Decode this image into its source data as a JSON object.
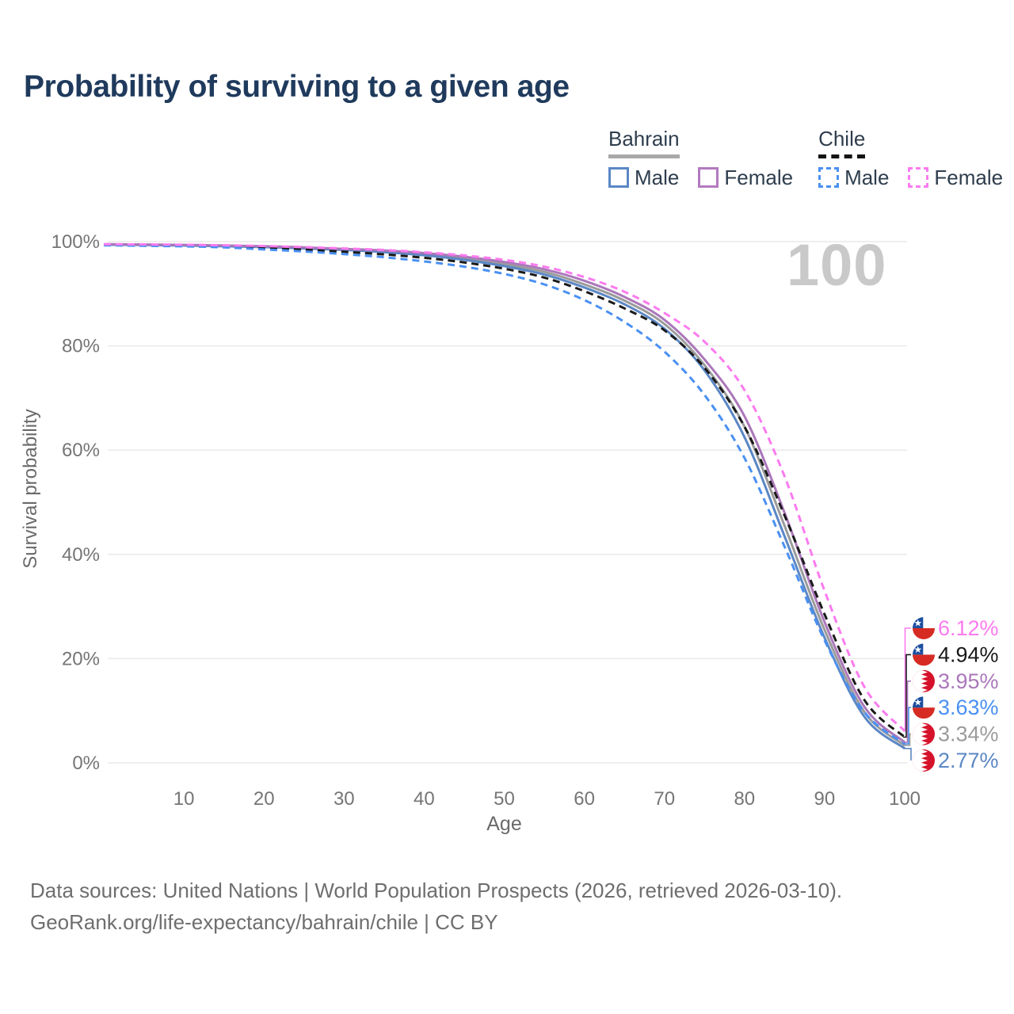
{
  "title": "Probability of surviving to a given age",
  "watermark": "100",
  "legend": {
    "groups": [
      {
        "name": "Bahrain",
        "style": "solid",
        "underline_color": "#a9a9a9",
        "items": [
          {
            "label": "Male",
            "color": "#5b87c5"
          },
          {
            "label": "Female",
            "color": "#b27abf"
          }
        ]
      },
      {
        "name": "Chile",
        "style": "dashed",
        "underline_color": "#141414",
        "items": [
          {
            "label": "Male",
            "color": "#4a90f2"
          },
          {
            "label": "Female",
            "color": "#fb7bef"
          }
        ]
      }
    ]
  },
  "chart_data": {
    "type": "line",
    "title": "Probability of surviving to a given age",
    "xlabel": "Age",
    "ylabel": "Survival probability",
    "xlim": [
      0,
      100
    ],
    "ylim": [
      0,
      100
    ],
    "grid": true,
    "x_ticks": [
      10,
      20,
      30,
      40,
      50,
      60,
      70,
      80,
      90,
      100
    ],
    "y_ticks": [
      0,
      20,
      40,
      60,
      80,
      100
    ],
    "y_tick_labels": [
      "0%",
      "20%",
      "40%",
      "60%",
      "80%",
      "100%"
    ],
    "ages": [
      0,
      5,
      10,
      15,
      20,
      25,
      30,
      35,
      40,
      45,
      50,
      55,
      60,
      65,
      70,
      75,
      80,
      85,
      90,
      95,
      100
    ],
    "series": [
      {
        "id": "bahrain-total",
        "name": "Bahrain — Both sexes",
        "country": "Bahrain",
        "sex": "Both",
        "color": "#9b9b9b",
        "dash": false,
        "flag": "bahrain",
        "end_label": "3.34%",
        "values": [
          99.45,
          99.4,
          99.3,
          99.17,
          99.0,
          98.8,
          98.5,
          98.15,
          97.6,
          96.8,
          95.7,
          94.2,
          91.8,
          88.7,
          84.2,
          76.3,
          64.5,
          45.5,
          25.5,
          9.7,
          3.34
        ]
      },
      {
        "id": "bahrain-male",
        "name": "Bahrain — Male",
        "country": "Bahrain",
        "sex": "Male",
        "color": "#5b87c5",
        "dash": false,
        "flag": "bahrain",
        "end_label": "2.77%",
        "values": [
          99.4,
          99.35,
          99.25,
          99.1,
          98.95,
          98.7,
          98.4,
          98.0,
          97.4,
          96.5,
          95.3,
          93.7,
          91.2,
          88.0,
          83.3,
          75.3,
          62.5,
          43.5,
          24.0,
          8.8,
          2.77
        ]
      },
      {
        "id": "bahrain-female",
        "name": "Bahrain — Female",
        "country": "Bahrain",
        "sex": "Female",
        "color": "#ab77ba",
        "dash": false,
        "flag": "bahrain",
        "end_label": "3.95%",
        "values": [
          99.5,
          99.45,
          99.38,
          99.25,
          99.1,
          98.9,
          98.6,
          98.3,
          97.8,
          97.1,
          96.1,
          94.7,
          92.5,
          89.4,
          85.0,
          77.4,
          66.5,
          48.0,
          27.0,
          10.7,
          3.95
        ]
      },
      {
        "id": "chile-total",
        "name": "Chile — Both sexes",
        "country": "Chile",
        "sex": "Both",
        "color": "#1a1a1a",
        "dash": true,
        "flag": "chile",
        "end_label": "4.94%",
        "values": [
          99.35,
          99.3,
          99.2,
          99.0,
          98.75,
          98.45,
          98.05,
          97.55,
          96.9,
          96.0,
          94.8,
          93.1,
          90.5,
          87.2,
          83.0,
          75.8,
          64.5,
          47.5,
          28.5,
          12.0,
          4.94
        ]
      },
      {
        "id": "chile-male",
        "name": "Chile — Male",
        "country": "Chile",
        "sex": "Male",
        "color": "#4a90f2",
        "dash": true,
        "flag": "chile",
        "end_label": "3.63%",
        "values": [
          99.3,
          99.2,
          99.1,
          98.9,
          98.5,
          98.1,
          97.6,
          97.0,
          96.2,
          95.2,
          93.8,
          91.8,
          88.8,
          84.6,
          78.9,
          70.6,
          58.5,
          41.5,
          23.5,
          9.7,
          3.63
        ]
      },
      {
        "id": "chile-female",
        "name": "Chile — Female",
        "country": "Chile",
        "sex": "Female",
        "color": "#fb7bef",
        "dash": true,
        "flag": "chile",
        "end_label": "6.12%",
        "values": [
          99.5,
          99.45,
          99.4,
          99.3,
          99.15,
          98.95,
          98.7,
          98.4,
          97.95,
          97.35,
          96.5,
          95.2,
          93.2,
          90.4,
          86.3,
          80.8,
          71.5,
          55.0,
          33.0,
          14.5,
          6.12
        ]
      }
    ]
  },
  "footer": {
    "line1": "Data sources: United Nations | World Population Prospects (2026, retrieved 2026-03-10).",
    "line2": "GeoRank.org/life-expectancy/bahrain/chile | CC BY"
  }
}
